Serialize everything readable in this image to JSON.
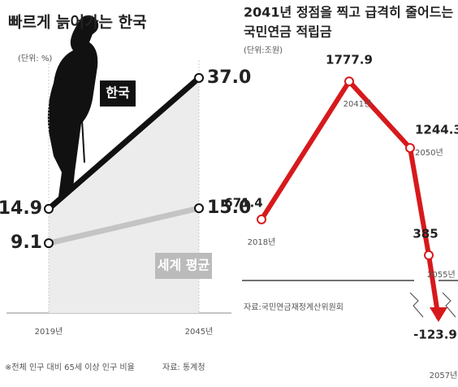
{
  "chart_data": [
    {
      "type": "line",
      "title": "빠르게 늙어가는 한국",
      "unit": "(단위: %)",
      "categories": [
        "2019년",
        "2045년"
      ],
      "series": [
        {
          "name": "한국",
          "color": "#111111",
          "values": [
            14.9,
            37.0
          ],
          "value_labels": [
            "14.9",
            "37.0"
          ]
        },
        {
          "name": "세계 평균",
          "color": "#c4c4c4",
          "values": [
            9.1,
            15.0
          ],
          "value_labels": [
            "9.1",
            "15.0"
          ]
        }
      ],
      "ylim": [
        -2,
        40
      ],
      "note": "※전체 인구 대비 65세 이상 인구 비율",
      "source": "자료: 통계청"
    },
    {
      "type": "line",
      "title": [
        "2041년 정점을 찍고 급격히 줄어드는",
        "국민연금 적립금"
      ],
      "unit": "(단위:조원)",
      "categories": [
        "2018년",
        "2041년",
        "2050년",
        "2055년",
        "2057년"
      ],
      "values": [
        671.4,
        1777.9,
        1244.3,
        385,
        -123.9
      ],
      "color": "#d7191c",
      "ylim": [
        -300,
        2000
      ],
      "source": "자료:국민연금재정계산위원회"
    }
  ]
}
